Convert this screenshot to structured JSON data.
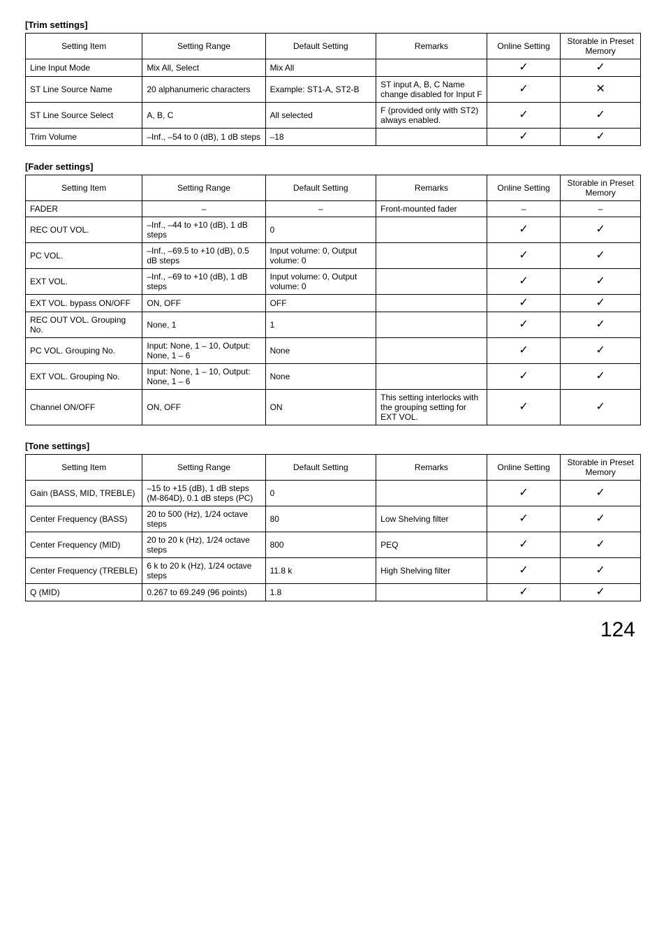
{
  "marks": {
    "check": "✓",
    "cross": "✕",
    "dash": "–"
  },
  "page_number": "124",
  "sections": [
    {
      "title": "[Trim settings]",
      "headers": [
        "Setting Item",
        "Setting Range",
        "Default Setting",
        "Remarks",
        "Online Setting",
        "Storable in Preset Memory"
      ],
      "rows": [
        {
          "item": "Line Input Mode",
          "range": "Mix All, Select",
          "def": "Mix All",
          "remarks": "",
          "online": "check",
          "storable": "check"
        },
        {
          "item": "ST Line Source Name",
          "range": "20 alphanumeric characters",
          "def": "Example: ST1-A, ST2-B",
          "remarks": "ST input A, B, C Name change disabled for Input F",
          "online": "check",
          "storable": "cross"
        },
        {
          "item": "ST Line Source Select",
          "range": "A, B, C",
          "def": "All selected",
          "remarks": "F (provided only with ST2) always enabled.",
          "online": "check",
          "storable": "check"
        },
        {
          "item": "Trim Volume",
          "range": "–Inf., –54 to 0 (dB), 1 dB steps",
          "def": "–18",
          "remarks": "",
          "online": "check",
          "storable": "check"
        }
      ]
    },
    {
      "title": "[Fader settings]",
      "headers": [
        "Setting Item",
        "Setting Range",
        "Default Setting",
        "Remarks",
        "Online Setting",
        "Storable in Preset Memory"
      ],
      "rows": [
        {
          "item": "FADER",
          "range": "–",
          "def": "–",
          "remarks": "Front-mounted fader",
          "online": "–",
          "storable": "–",
          "range_center": true,
          "def_center": true,
          "online_text": true,
          "storable_text": true
        },
        {
          "item": "REC OUT VOL.",
          "range": "–Inf., –44 to +10 (dB), 1 dB steps",
          "def": "0",
          "remarks": "",
          "online": "check",
          "storable": "check"
        },
        {
          "item": "PC VOL.",
          "range": "–Inf., –69.5 to +10 (dB), 0.5 dB steps",
          "def": "Input volume:    0, Output volume: 0",
          "remarks": "",
          "online": "check",
          "storable": "check"
        },
        {
          "item": "EXT VOL.",
          "range": "–Inf., –69 to +10 (dB), 1 dB steps",
          "def": "Input volume:    0, Output volume: 0",
          "remarks": "",
          "online": "check",
          "storable": "check"
        },
        {
          "item": "EXT VOL. bypass ON/OFF",
          "range": "ON, OFF",
          "def": "OFF",
          "remarks": "",
          "online": "check",
          "storable": "check"
        },
        {
          "item": "REC OUT VOL. Grouping No.",
          "range": "None, 1",
          "def": "1",
          "remarks": "",
          "online": "check",
          "storable": "check"
        },
        {
          "item": "PC VOL. Grouping No.",
          "range": "Input:   None, 1 – 10, Output: None, 1 – 6",
          "def": "None",
          "remarks": "",
          "online": "check",
          "storable": "check"
        },
        {
          "item": "EXT VOL. Grouping No.",
          "range": "Input:   None, 1 – 10, Output: None, 1 – 6",
          "def": "None",
          "remarks": "",
          "online": "check",
          "storable": "check"
        },
        {
          "item": "Channel ON/OFF",
          "range": "ON, OFF",
          "def": "ON",
          "remarks": "This setting interlocks with the grouping setting for EXT VOL.",
          "online": "check",
          "storable": "check"
        }
      ]
    },
    {
      "title": "[Tone settings]",
      "headers": [
        "Setting Item",
        "Setting Range",
        "Default Setting",
        "Remarks",
        "Online Setting",
        "Storable in Preset Memory"
      ],
      "rows": [
        {
          "item": "Gain (BASS, MID, TREBLE)",
          "range": "–15 to +15 (dB), 1 dB steps (M-864D), 0.1 dB steps (PC)",
          "def": "0",
          "remarks": "",
          "online": "check",
          "storable": "check"
        },
        {
          "item": "Center Frequency (BASS)",
          "range": "20 to 500 (Hz), 1/24 octave steps",
          "def": "80",
          "remarks": "Low Shelving filter",
          "online": "check",
          "storable": "check"
        },
        {
          "item": "Center Frequency (MID)",
          "range": "20 to 20 k (Hz), 1/24 octave steps",
          "def": "800",
          "remarks": "PEQ",
          "online": "check",
          "storable": "check"
        },
        {
          "item": "Center Frequency (TREBLE)",
          "range": "6 k to 20 k (Hz), 1/24 octave steps",
          "def": "11.8 k",
          "remarks": "High Shelving filter",
          "online": "check",
          "storable": "check"
        },
        {
          "item": "Q (MID)",
          "range": "0.267 to 69.249 (96 points)",
          "def": "1.8",
          "remarks": "",
          "online": "check",
          "storable": "check"
        }
      ]
    }
  ]
}
